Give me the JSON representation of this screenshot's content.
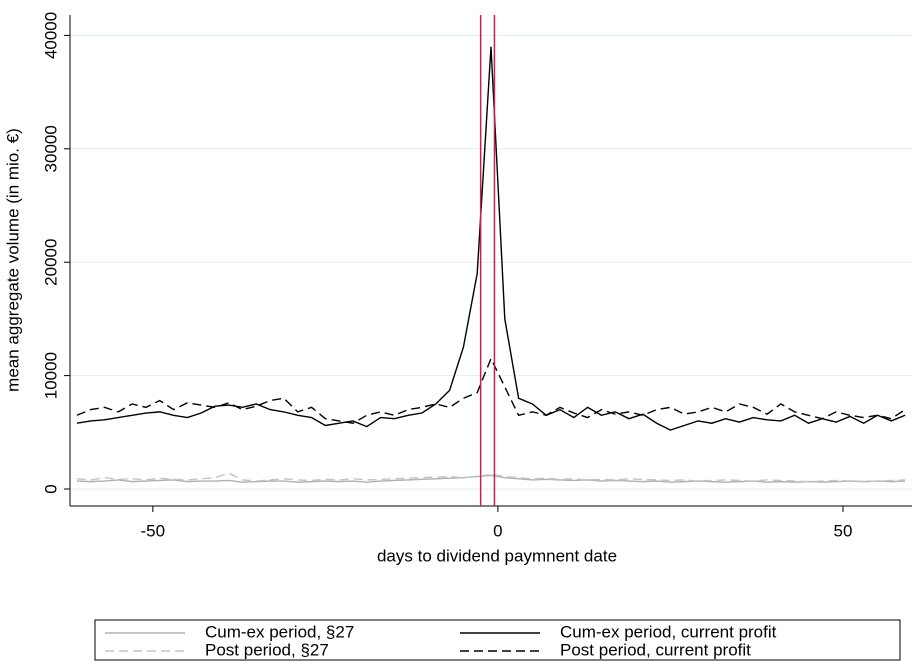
{
  "chart_data": {
    "type": "line",
    "x_label": "days to dividend paymnent date",
    "y_label": "mean aggregate volume (in mio. €)",
    "x": [
      -61,
      -59,
      -57,
      -55,
      -53,
      -51,
      -49,
      -47,
      -45,
      -43,
      -41,
      -39,
      -37,
      -35,
      -33,
      -31,
      -29,
      -27,
      -25,
      -23,
      -21,
      -19,
      -17,
      -15,
      -13,
      -11,
      -9,
      -7,
      -5,
      -3,
      -1,
      1,
      3,
      5,
      7,
      9,
      11,
      13,
      15,
      17,
      19,
      21,
      23,
      25,
      27,
      29,
      31,
      33,
      35,
      37,
      39,
      41,
      43,
      45,
      47,
      49,
      51,
      53,
      55,
      57,
      59
    ],
    "series": [
      {
        "name": "Cum-ex period, §27",
        "color": "#b0b0b0",
        "dash": false,
        "values": [
          700,
          650,
          700,
          800,
          650,
          700,
          750,
          800,
          650,
          700,
          700,
          750,
          600,
          650,
          700,
          700,
          600,
          650,
          700,
          650,
          700,
          600,
          700,
          750,
          800,
          850,
          900,
          950,
          1000,
          1100,
          1200,
          1000,
          900,
          800,
          850,
          800,
          750,
          800,
          700,
          750,
          700,
          650,
          700,
          600,
          650,
          700,
          650,
          600,
          650,
          700,
          600,
          650,
          600,
          650,
          600,
          650,
          700,
          650,
          700,
          650,
          700
        ]
      },
      {
        "name": "Cum-ex period, current profit",
        "color": "#000000",
        "dash": false,
        "values": [
          5800,
          6000,
          6100,
          6300,
          6500,
          6700,
          6800,
          6500,
          6300,
          6700,
          7300,
          7400,
          7200,
          7500,
          7000,
          6800,
          6500,
          6300,
          5600,
          5800,
          6000,
          5500,
          6300,
          6200,
          6500,
          6700,
          7500,
          8700,
          12500,
          19000,
          39000,
          15000,
          8000,
          7500,
          6500,
          7000,
          6300,
          7200,
          6500,
          6800,
          6200,
          6600,
          5800,
          5200,
          5600,
          6000,
          5800,
          6200,
          5900,
          6300,
          6100,
          6000,
          6500,
          5800,
          6200,
          5900,
          6400,
          5800,
          6500,
          6000,
          6500
        ]
      },
      {
        "name": "Post period, §27",
        "color": "#c4c4c4",
        "dash": true,
        "values": [
          900,
          800,
          1000,
          850,
          900,
          800,
          950,
          850,
          800,
          900,
          1000,
          1400,
          800,
          700,
          800,
          900,
          800,
          750,
          850,
          800,
          900,
          800,
          850,
          900,
          950,
          1000,
          1050,
          1100,
          1000,
          1100,
          1300,
          1100,
          1000,
          900,
          950,
          850,
          900,
          800,
          850,
          800,
          900,
          850,
          800,
          750,
          800,
          700,
          750,
          800,
          750,
          700,
          800,
          750,
          700,
          650,
          700,
          750,
          700,
          650,
          700,
          750,
          800
        ]
      },
      {
        "name": "Post period, current profit",
        "color": "#000000",
        "dash": true,
        "values": [
          6500,
          7000,
          7200,
          6800,
          7500,
          7200,
          7800,
          7000,
          7600,
          7400,
          7200,
          7600,
          7000,
          7300,
          7800,
          8000,
          6800,
          7200,
          6200,
          6000,
          5800,
          6500,
          6800,
          6500,
          7000,
          7200,
          7500,
          7200,
          8000,
          8500,
          11500,
          9000,
          6500,
          6800,
          6500,
          7200,
          6700,
          6300,
          7000,
          6600,
          6800,
          6500,
          7000,
          7200,
          6600,
          6800,
          7200,
          6800,
          7500,
          7200,
          6600,
          7500,
          6800,
          6500,
          6200,
          6800,
          6500,
          6300,
          6500,
          6200,
          7000
        ]
      }
    ],
    "xlim": [
      -62,
      60
    ],
    "ylim": [
      -1500,
      41800
    ],
    "xticks": [
      -50,
      0,
      50
    ],
    "yticks": [
      0,
      10000,
      20000,
      30000,
      40000
    ],
    "grid": true,
    "vlines": [
      -2.5,
      -0.5
    ],
    "vline_color": "#cc1f4a",
    "legend": "bottom"
  }
}
